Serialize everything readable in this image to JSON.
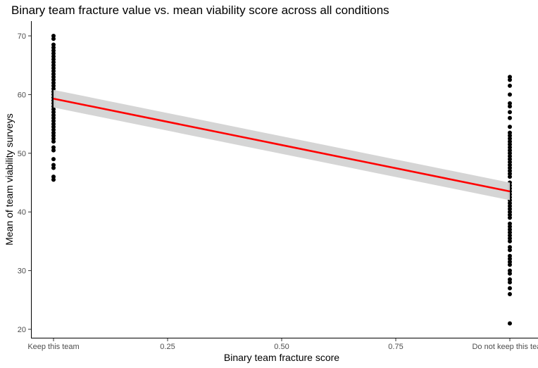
{
  "chart_data": {
    "type": "scatter",
    "title": "Binary team fracture value vs. mean viability score across all conditions",
    "xlabel": "Binary team fracture score",
    "ylabel": "Mean of team viability surveys",
    "xlim": [
      0,
      1
    ],
    "ylim": [
      20,
      70
    ],
    "x_ticks": [
      {
        "value": 0,
        "label": "Keep this team"
      },
      {
        "value": 0.25,
        "label": "0.25"
      },
      {
        "value": 0.5,
        "label": "0.50"
      },
      {
        "value": 0.75,
        "label": "0.75"
      },
      {
        "value": 1,
        "label": "Do not keep this team"
      }
    ],
    "y_ticks": [
      20,
      30,
      40,
      50,
      60,
      70
    ],
    "grid": false,
    "series": [
      {
        "x": 0,
        "values": [
          70,
          69.5,
          68.5,
          68,
          67.5,
          67,
          66.5,
          66,
          65.5,
          65,
          64.5,
          64,
          63.5,
          63,
          62.5,
          62,
          61.5,
          61,
          60.5,
          60,
          59.5,
          59,
          58.5,
          58,
          57.5,
          57,
          56.5,
          56,
          55.5,
          55,
          54.5,
          54,
          53.5,
          53,
          52.5,
          52,
          51,
          50.5,
          49,
          48,
          47.5,
          46,
          45.5
        ],
        "color": "#000000"
      },
      {
        "x": 1,
        "values": [
          63,
          62.5,
          61.5,
          60,
          58.5,
          58,
          57,
          56,
          54.5,
          53.5,
          53,
          52.5,
          52,
          51.5,
          51,
          50.5,
          50,
          49.5,
          49,
          48.5,
          48,
          47.5,
          47,
          46.5,
          46,
          45,
          44.5,
          44,
          43.5,
          43,
          42.5,
          42,
          41.5,
          41,
          40.5,
          40,
          39.5,
          39,
          38,
          37.5,
          37,
          36.5,
          36,
          35.5,
          35,
          34,
          33.5,
          32.5,
          32,
          31.5,
          31,
          30,
          29.5,
          28.5,
          28,
          27,
          26,
          21
        ],
        "color": "#000000"
      }
    ],
    "regression": {
      "x": [
        0,
        1
      ],
      "y": [
        59.3,
        43.5
      ],
      "ci_lower": [
        57.8,
        42.0
      ],
      "ci_upper": [
        60.8,
        45.0
      ],
      "line_color": "#ff0000",
      "band_color": "#d3d3d3"
    }
  }
}
